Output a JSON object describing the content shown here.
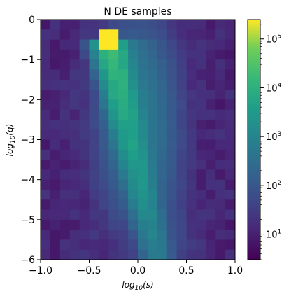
{
  "chart_data": {
    "type": "heatmap",
    "title": "N DE samples",
    "xlabel_base": "log",
    "xlabel_sub": "10",
    "xlabel_arg": "(s)",
    "ylabel_base": "log",
    "ylabel_sub": "10",
    "ylabel_arg": "(q)",
    "xlim": [
      -1.0,
      1.0
    ],
    "ylim": [
      -6,
      0
    ],
    "xticks": [
      -1.0,
      -0.5,
      0.0,
      0.5,
      1.0
    ],
    "xtick_labels": [
      "−1.0",
      "−0.5",
      "0.0",
      "0.5",
      "1.0"
    ],
    "yticks": [
      0,
      -1,
      -2,
      -3,
      -4,
      -5,
      -6
    ],
    "ytick_labels": [
      "0",
      "−1",
      "−2",
      "−3",
      "−4",
      "−5",
      "−6"
    ],
    "grid": false,
    "nx": 20,
    "ny": 24,
    "colormap": "viridis",
    "color_scale": "log",
    "color_range": [
      3,
      250000
    ],
    "colorbar": {
      "ticks": [
        10,
        100,
        1000,
        10000,
        100000
      ],
      "tick_bases": [
        "10",
        "10",
        "10",
        "10",
        "10"
      ],
      "tick_exps": [
        "1",
        "2",
        "3",
        "4",
        "5"
      ]
    },
    "description_of_values": "2D histogram of counts: peak ~2.5e5 near log10(s)=-0.3, log10(q)=-0.5; high ridge (1e4) running down to log10(s)=-0.15, log10(q)=-2; background ~10-30 counts.",
    "peak": {
      "x": -0.3,
      "y": -0.5,
      "count": 250000
    },
    "ridge": [
      {
        "x": -0.25,
        "y": -0.75,
        "count": 20000
      },
      {
        "x": -0.25,
        "y": -1.0,
        "count": 15000
      },
      {
        "x": -0.2,
        "y": -1.25,
        "count": 12000
      },
      {
        "x": -0.2,
        "y": -1.5,
        "count": 9000
      },
      {
        "x": -0.15,
        "y": -1.75,
        "count": 5000
      },
      {
        "x": -0.15,
        "y": -2.0,
        "count": 2000
      }
    ]
  }
}
